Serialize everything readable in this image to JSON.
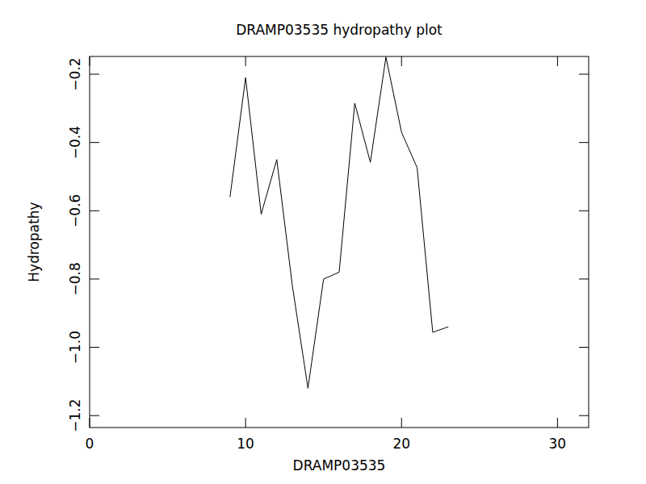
{
  "chart_data": {
    "type": "line",
    "title": "DRAMP03535 hydropathy plot",
    "x_label": "DRAMP03535",
    "y_label": "Hydropathy",
    "x": [
      9,
      10,
      11,
      12,
      13,
      14,
      15,
      16,
      17,
      18,
      19,
      20,
      21,
      22,
      23
    ],
    "values": [
      -0.56,
      -0.21,
      -0.61,
      -0.45,
      -0.82,
      -1.12,
      -0.8,
      -0.78,
      -0.285,
      -0.458,
      -0.15,
      -0.37,
      -0.474,
      -0.956,
      -0.94
    ],
    "color": "#000000",
    "xlim": [
      0,
      32
    ],
    "xticks": [
      0,
      10,
      20,
      30
    ],
    "ylim": [
      -1.235,
      -0.148
    ],
    "yticks": [
      {
        "value": -0.2,
        "label": "−0.2"
      },
      {
        "value": -0.4,
        "label": "−0.4"
      },
      {
        "value": -0.6,
        "label": "−0.6"
      },
      {
        "value": -0.8,
        "label": "−0.8"
      },
      {
        "value": -1.0,
        "label": "−1.0"
      },
      {
        "value": -1.2,
        "label": "−1.2"
      }
    ],
    "grid": false
  }
}
